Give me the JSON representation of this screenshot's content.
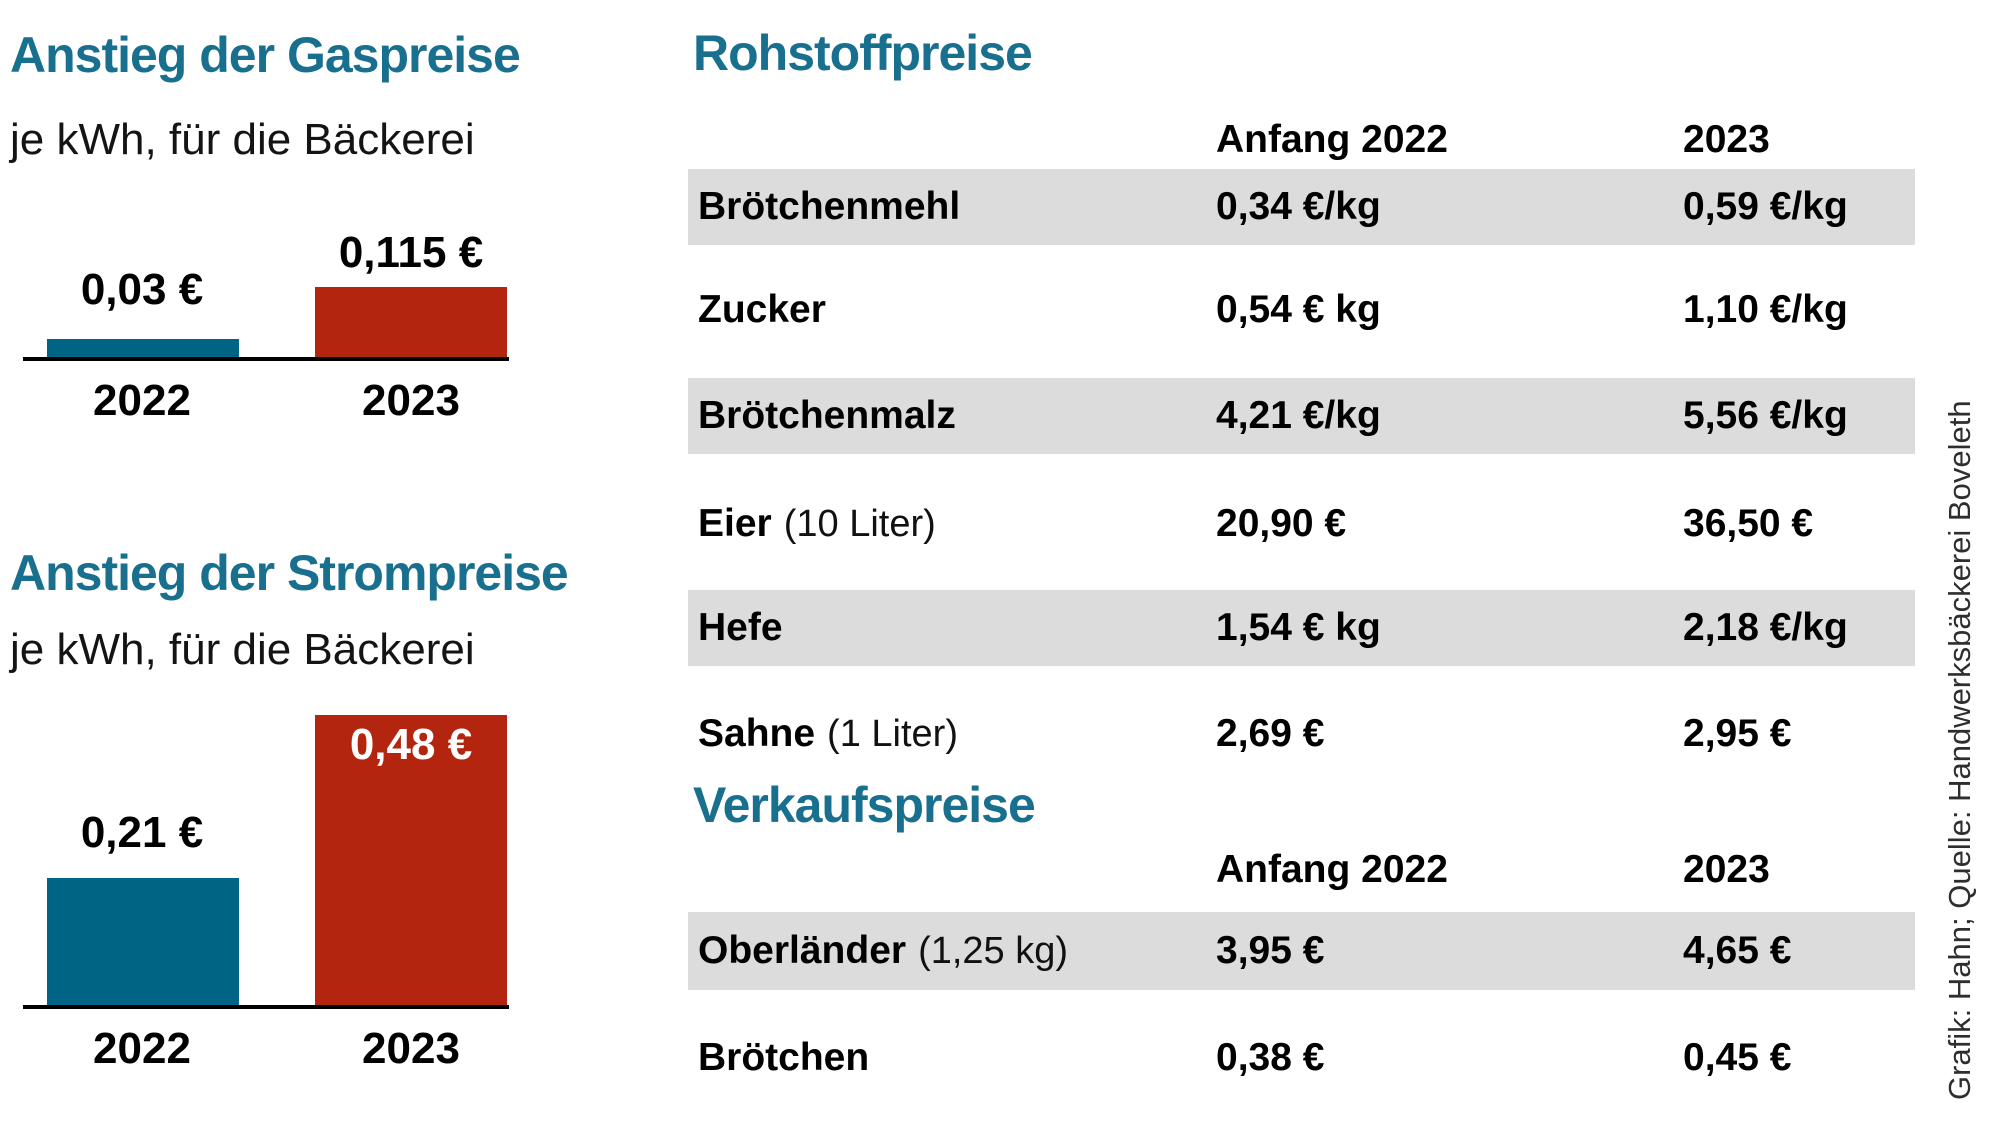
{
  "colors": {
    "heading_teal": "#19708e",
    "bar_teal": "#006485",
    "bar_red": "#b3250e",
    "row_gray": "#dcdcdc",
    "axis_black": "#000000",
    "value_label_dark": "#000000",
    "value_label_light": "#ffffff"
  },
  "chart_data": [
    {
      "type": "bar",
      "title": "Anstieg der Gaspreise",
      "subtitle": "je kWh, für die Bäckerei",
      "categories": [
        "2022",
        "2023"
      ],
      "values": [
        0.03,
        0.115
      ],
      "value_labels": [
        "0,03 €",
        "0,115 €"
      ],
      "unit": "€ je kWh",
      "ylim": [
        0,
        0.12
      ],
      "bar_colors": [
        "#006485",
        "#b3250e"
      ],
      "grid": false,
      "legend": false
    },
    {
      "type": "bar",
      "title": "Anstieg der Strompreise",
      "subtitle": "je kWh, für die Bäckerei",
      "categories": [
        "2022",
        "2023"
      ],
      "values": [
        0.21,
        0.48
      ],
      "value_labels": [
        "0,21 €",
        "0,48 €"
      ],
      "unit": "€ je kWh",
      "ylim": [
        0,
        0.5
      ],
      "bar_colors": [
        "#006485",
        "#b3250e"
      ],
      "grid": false,
      "legend": false
    }
  ],
  "tables": [
    {
      "title": "Rohstoffpreise",
      "columns": [
        "Anfang 2022",
        "2023"
      ],
      "rows": [
        {
          "name": "Brötchenmehl",
          "note": "",
          "v2022": "0,34 €/kg",
          "v2023": "0,59 €/kg"
        },
        {
          "name": "Zucker",
          "note": "",
          "v2022": "0,54 € kg",
          "v2023": "1,10 €/kg"
        },
        {
          "name": "Brötchenmalz",
          "note": "",
          "v2022": "4,21 €/kg",
          "v2023": "5,56 €/kg"
        },
        {
          "name": "Eier",
          "note": "(10 Liter)",
          "v2022": "20,90 €",
          "v2023": "36,50 €"
        },
        {
          "name": "Hefe",
          "note": "",
          "v2022": "1,54 € kg",
          "v2023": "2,18 €/kg"
        },
        {
          "name": "Sahne",
          "note": "(1 Liter)",
          "v2022": "2,69 €",
          "v2023": "2,95 €"
        }
      ]
    },
    {
      "title": "Verkaufspreise",
      "columns": [
        "Anfang 2022",
        "2023"
      ],
      "rows": [
        {
          "name": "Oberländer",
          "note": "(1,25 kg)",
          "v2022": "3,95 €",
          "v2023": "4,65 €"
        },
        {
          "name": "Brötchen",
          "note": "",
          "v2022": "0,38 €",
          "v2023": "0,45 €"
        }
      ]
    }
  ],
  "credit": "Grafik: Hahn; Quelle: Handwerksbäckerei Boveleth"
}
